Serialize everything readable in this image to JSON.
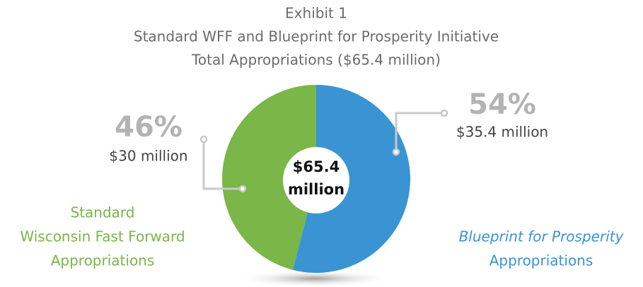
{
  "chart_data": {
    "type": "pie",
    "title": [
      "Exhibit 1",
      "Standard WFF and Blueprint for Prosperity Initiative",
      "Total Appropriations ($65.4 million)"
    ],
    "category_lines": [
      [
        "Standard",
        "Wisconsin Fast Forward",
        "Appropriations"
      ],
      [
        "Blueprint for Prosperity",
        "Appropriations"
      ]
    ],
    "values": [
      46,
      54
    ],
    "value_labels": [
      "46%",
      "54%"
    ],
    "amount_labels": [
      "$30 million",
      "$35.4 million"
    ],
    "colors": [
      "#7ab648",
      "#3a94d4"
    ],
    "center_label": [
      "$65.4",
      "million"
    ]
  }
}
